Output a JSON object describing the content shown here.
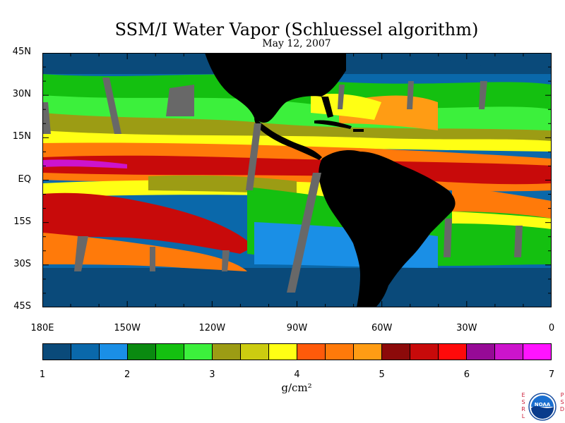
{
  "title": "SSM/I Water Vapor (Schluessel algorithm)",
  "date": "May 12, 2007",
  "y_axis": {
    "labels": [
      {
        "text": "45N",
        "lat": 45
      },
      {
        "text": "30N",
        "lat": 30
      },
      {
        "text": "15N",
        "lat": 15
      },
      {
        "text": "EQ",
        "lat": 0
      },
      {
        "text": "15S",
        "lat": -15
      },
      {
        "text": "30S",
        "lat": -30
      },
      {
        "text": "45S",
        "lat": -45
      }
    ],
    "range": [
      -45,
      45
    ]
  },
  "x_axis": {
    "labels": [
      {
        "text": "180E",
        "lon": -180
      },
      {
        "text": "150W",
        "lon": -150
      },
      {
        "text": "120W",
        "lon": -120
      },
      {
        "text": "90W",
        "lon": -90
      },
      {
        "text": "60W",
        "lon": -60
      },
      {
        "text": "30W",
        "lon": -30
      },
      {
        "text": "0",
        "lon": 0
      }
    ],
    "range": [
      -180,
      0
    ]
  },
  "colorbar": {
    "colors": [
      "#0a4a7a",
      "#0a68aa",
      "#1a8fe6",
      "#0a8a10",
      "#14c010",
      "#3cf03c",
      "#9c9c14",
      "#cccc10",
      "#ffff14",
      "#ff5a0a",
      "#ff7a0a",
      "#ff9c14",
      "#8c0a0a",
      "#c80a0a",
      "#ff0a0a",
      "#960a96",
      "#cc14cc",
      "#ff14ff"
    ],
    "ticks": [
      "1",
      "2",
      "3",
      "4",
      "5",
      "6",
      "7"
    ],
    "unit": "g/cm²"
  },
  "colors": {
    "land": "#000000",
    "missing": "#686868"
  },
  "logo": {
    "left_letters": [
      "E",
      "S",
      "R",
      "L"
    ],
    "right_letters": [
      "P",
      "S",
      "D"
    ],
    "badge_text": "NOAA"
  }
}
